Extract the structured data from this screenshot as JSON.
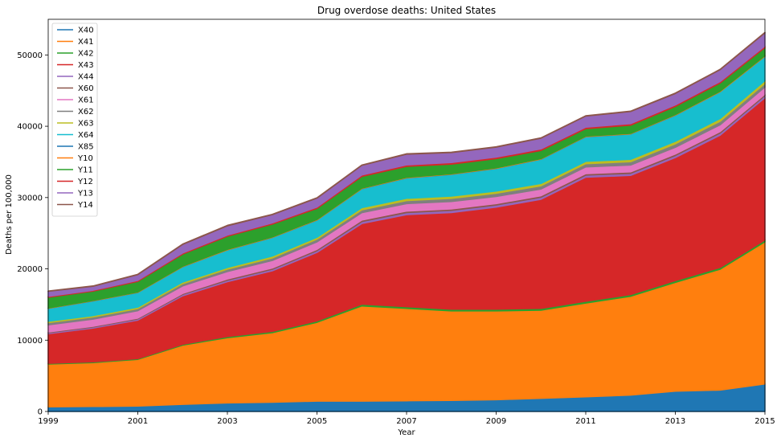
{
  "chart_data": {
    "type": "area",
    "stacked": true,
    "title": "Drug overdose deaths: United States",
    "xlabel": "Year",
    "ylabel": "Deaths per 100,000",
    "xlim": [
      1999,
      2015
    ],
    "ylim": [
      0,
      55000
    ],
    "xticks": [
      1999,
      2001,
      2003,
      2005,
      2007,
      2009,
      2011,
      2013,
      2015
    ],
    "yticks": [
      0,
      10000,
      20000,
      30000,
      40000,
      50000
    ],
    "legend_position": "top-left",
    "grid": false,
    "x": [
      1999,
      2000,
      2001,
      2002,
      2003,
      2004,
      2005,
      2006,
      2007,
      2008,
      2009,
      2010,
      2011,
      2012,
      2013,
      2014,
      2015
    ],
    "series": [
      {
        "name": "X40",
        "color": "#1f77b4",
        "values": [
          650,
          700,
          750,
          1000,
          1200,
          1300,
          1450,
          1450,
          1500,
          1550,
          1650,
          1850,
          2050,
          2300,
          2850,
          3000,
          3850
        ]
      },
      {
        "name": "X41",
        "color": "#ff7f0e",
        "values": [
          6000,
          6150,
          6550,
          8300,
          9150,
          9750,
          11050,
          13350,
          12950,
          12550,
          12450,
          12350,
          13150,
          13850,
          15250,
          16950,
          19950
        ]
      },
      {
        "name": "X42",
        "color": "#2ca02c",
        "values": [
          100,
          100,
          100,
          120,
          150,
          170,
          200,
          250,
          250,
          250,
          250,
          250,
          250,
          250,
          250,
          250,
          250
        ]
      },
      {
        "name": "X43",
        "color": "#d62728",
        "values": [
          4150,
          4750,
          5400,
          6800,
          7700,
          8500,
          9600,
          11300,
          12900,
          13550,
          14300,
          15300,
          17400,
          16700,
          17250,
          18550,
          19950
        ]
      },
      {
        "name": "X44",
        "color": "#9467bd",
        "values": [
          150,
          150,
          170,
          200,
          220,
          230,
          250,
          280,
          300,
          300,
          300,
          300,
          300,
          300,
          300,
          300,
          300
        ]
      },
      {
        "name": "X60",
        "color": "#8c564b",
        "values": [
          100,
          100,
          110,
          130,
          150,
          170,
          180,
          200,
          200,
          200,
          200,
          200,
          200,
          200,
          200,
          200,
          200
        ]
      },
      {
        "name": "X61",
        "color": "#e377c2",
        "values": [
          1000,
          1000,
          1050,
          1050,
          1050,
          1050,
          1050,
          1050,
          1050,
          1050,
          1000,
          950,
          950,
          950,
          950,
          950,
          1000
        ]
      },
      {
        "name": "X62",
        "color": "#7f7f7f",
        "values": [
          300,
          300,
          300,
          320,
          340,
          360,
          380,
          400,
          420,
          430,
          450,
          450,
          450,
          470,
          480,
          500,
          500
        ]
      },
      {
        "name": "X63",
        "color": "#bcbd22",
        "values": [
          200,
          200,
          200,
          220,
          240,
          260,
          280,
          300,
          320,
          320,
          320,
          320,
          320,
          340,
          360,
          380,
          400
        ]
      },
      {
        "name": "X64",
        "color": "#17becf",
        "values": [
          1800,
          2050,
          2050,
          2150,
          2450,
          2600,
          2400,
          2650,
          2850,
          3050,
          3150,
          3400,
          3450,
          3550,
          3650,
          3750,
          3400
        ]
      },
      {
        "name": "X85",
        "color": "#1f77b4",
        "values": [
          20,
          20,
          20,
          20,
          20,
          20,
          20,
          20,
          20,
          20,
          20,
          20,
          20,
          20,
          20,
          20,
          20
        ]
      },
      {
        "name": "Y10",
        "color": "#ff7f0e",
        "values": [
          50,
          50,
          50,
          60,
          60,
          60,
          70,
          70,
          70,
          70,
          70,
          70,
          70,
          70,
          70,
          70,
          70
        ]
      },
      {
        "name": "Y11",
        "color": "#2ca02c",
        "values": [
          1500,
          1300,
          1500,
          1700,
          1850,
          1800,
          1550,
          1650,
          1550,
          1350,
          1300,
          1150,
          1050,
          1150,
          1150,
          1150,
          1150
        ]
      },
      {
        "name": "Y12",
        "color": "#d62728",
        "values": [
          130,
          130,
          130,
          150,
          160,
          170,
          180,
          190,
          200,
          210,
          210,
          210,
          210,
          210,
          210,
          210,
          210
        ]
      },
      {
        "name": "Y13",
        "color": "#9467bd",
        "values": [
          700,
          550,
          800,
          1200,
          1300,
          1150,
          1250,
          1350,
          1500,
          1400,
          1400,
          1500,
          1550,
          1700,
          1600,
          1650,
          1850
        ]
      },
      {
        "name": "Y14",
        "color": "#8c564b",
        "values": [
          50,
          50,
          60,
          60,
          60,
          60,
          60,
          60,
          60,
          60,
          60,
          60,
          60,
          60,
          60,
          60,
          60
        ]
      }
    ]
  }
}
